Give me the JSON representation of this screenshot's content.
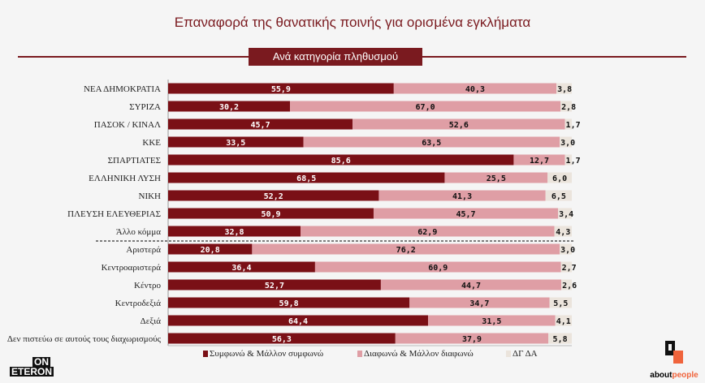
{
  "title": "Επαναφορά της θανατικής ποινής για ορισμένα εγκλήματα",
  "subtitle": "Ανά κατηγορία πληθυσμού",
  "logos": {
    "left_line1": "ON",
    "left_line2": "ETERON",
    "right_a": "about",
    "right_b": "people"
  },
  "chart_data": {
    "type": "bar",
    "stacked": true,
    "orientation": "horizontal",
    "xlim": [
      0,
      100
    ],
    "categories": [
      "ΝΕΑ ΔΗΜΟΚΡΑΤΙΑ",
      "ΣΥΡΙΖΑ",
      "ΠΑΣΟΚ / ΚΙΝΑΛ",
      "ΚΚΕ",
      "ΣΠΑΡΤΙΑΤΕΣ",
      "ΕΛΛΗΝΙΚΗ ΛΥΣΗ",
      "ΝΙΚΗ",
      "ΠΛΕΥΣΗ ΕΛΕΥΘΕΡΙΑΣ",
      "Άλλο κόμμα",
      "Αριστερά",
      "Κεντροαριστερά",
      "Κέντρο",
      "Κεντροδεξιά",
      "Δεξιά",
      "Δεν πιστεύω σε αυτούς τους διαχωρισμούς"
    ],
    "series": [
      {
        "name": "Συμφωνώ & Μάλλον συμφωνώ",
        "color": "#7a1016",
        "values": [
          55.9,
          30.2,
          45.7,
          33.5,
          85.6,
          68.5,
          52.2,
          50.9,
          32.8,
          20.8,
          36.4,
          52.7,
          59.8,
          64.4,
          56.3
        ]
      },
      {
        "name": "Διαφωνώ & Μάλλον διαφωνώ",
        "color": "#df9ea5",
        "values": [
          40.3,
          67.0,
          52.6,
          63.5,
          12.7,
          25.5,
          41.3,
          45.7,
          62.9,
          76.2,
          60.9,
          44.7,
          34.7,
          31.5,
          37.9
        ]
      },
      {
        "name": "ΔΓ ΔΑ",
        "color": "#ebe4dc",
        "values": [
          3.8,
          2.8,
          1.7,
          3.0,
          1.7,
          6.0,
          6.5,
          3.4,
          4.3,
          3.0,
          2.7,
          2.6,
          5.5,
          4.1,
          5.8
        ]
      }
    ],
    "legend": "bottom"
  }
}
